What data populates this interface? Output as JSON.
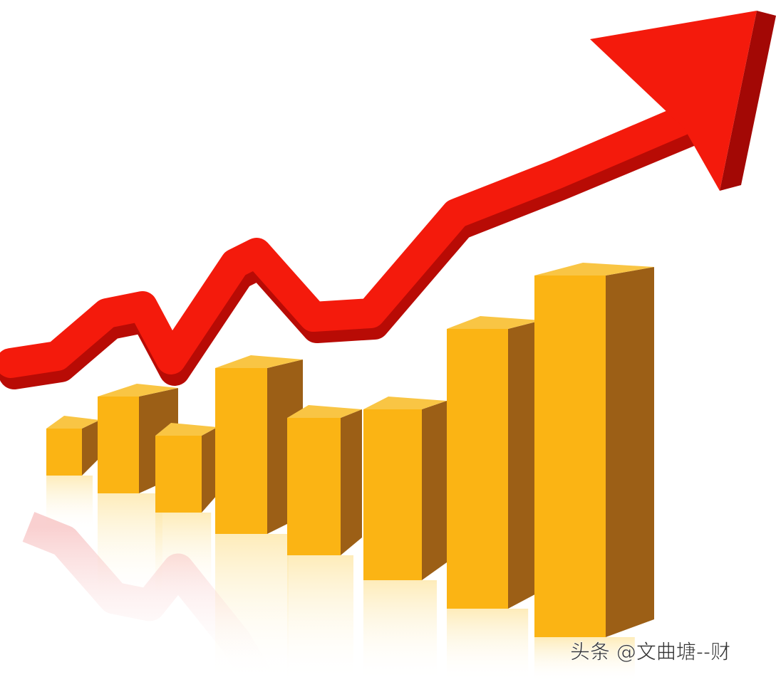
{
  "watermark": "头条 @文曲塘--财"
}
